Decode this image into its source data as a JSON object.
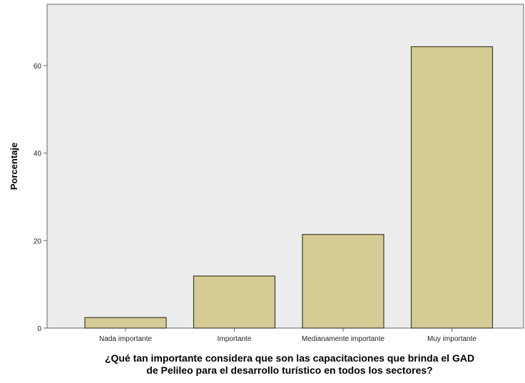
{
  "chart_data": {
    "type": "bar",
    "categories": [
      "Nada importante",
      "Importante",
      "Medianamente importante",
      "Muy importante"
    ],
    "values": [
      2.4,
      11.9,
      21.4,
      64.3
    ],
    "title": "",
    "xlabel_lines": [
      "¿Qué tan importante considera que son las capacitaciones que brinda el GAD",
      "de Pelileo para el desarrollo turístico en todos los sectores?"
    ],
    "ylabel": "Porcentaje",
    "yticks": [
      0,
      20,
      40,
      60
    ],
    "ylim": [
      0,
      74
    ],
    "grid": false,
    "legend": "none",
    "colors": {
      "plot_background": "#ececec",
      "bar_fill": "#d4cc94",
      "bar_stroke": "#3d3d2a",
      "axis": "#666666"
    }
  }
}
